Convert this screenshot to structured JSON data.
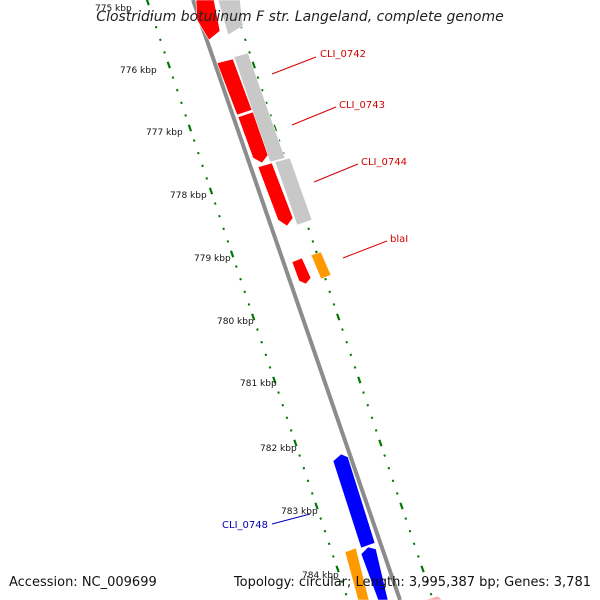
{
  "title": "Clostridium botulinum F str. Langeland, complete genome",
  "footer": {
    "accession": "Accession: NC_009699",
    "summary": "Topology: circular; Length: 3,995,387 bp; Genes: 3,781"
  },
  "scale": {
    "labels": [
      "775 kbp",
      "776 kbp",
      "777 kbp",
      "778 kbp",
      "779 kbp",
      "780 kbp",
      "781 kbp",
      "782 kbp",
      "783 kbp",
      "784 kbp"
    ]
  },
  "gene_labels": [
    {
      "text": "CLI_0742",
      "color": "#d40000"
    },
    {
      "text": "CLI_0743",
      "color": "#d40000"
    },
    {
      "text": "CLI_0744",
      "color": "#d40000"
    },
    {
      "text": "blaI",
      "color": "#d40000"
    },
    {
      "text": "CLI_0748",
      "color": "#0000b0"
    }
  ],
  "colors": {
    "backbone": "#8c8c8c",
    "forward_cds": "#ff0000",
    "reverse_cds": "#0000ff",
    "rna": "#c8c8c8",
    "other": "#ff9900",
    "ticks": "#007700"
  }
}
